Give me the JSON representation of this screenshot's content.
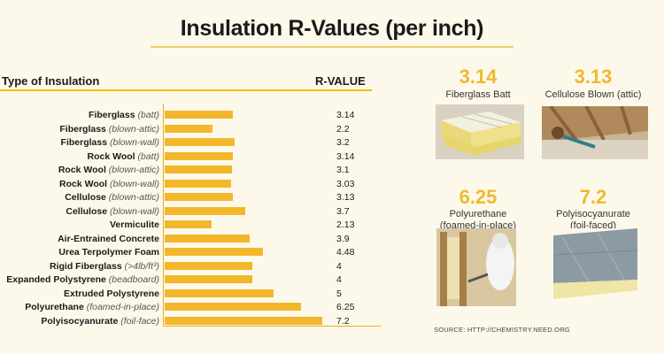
{
  "title": "Insulation R-Values (per inch)",
  "headers": {
    "type": "Type of Insulation",
    "rvalue": "R-VALUE"
  },
  "chart_data": {
    "type": "bar",
    "orientation": "horizontal",
    "xlabel": "Type of Insulation",
    "ylabel": "R-VALUE",
    "ylim": [
      0,
      7.5
    ],
    "categories": [
      {
        "name": "Fiberglass",
        "qualifier": "(batt)"
      },
      {
        "name": "Fiberglass",
        "qualifier": "(blown-attic)"
      },
      {
        "name": "Fiberglass",
        "qualifier": "(blown-wall)"
      },
      {
        "name": "Rock Wool",
        "qualifier": "(batt)"
      },
      {
        "name": "Rock Wool",
        "qualifier": "(blown-attic)"
      },
      {
        "name": "Rock Wool",
        "qualifier": "(blown-wall)"
      },
      {
        "name": "Cellulose",
        "qualifier": "(blown-attic)"
      },
      {
        "name": "Cellulose",
        "qualifier": "(blown-wall)"
      },
      {
        "name": "Vermiculite",
        "qualifier": ""
      },
      {
        "name": "Air-Entrained Concrete",
        "qualifier": ""
      },
      {
        "name": "Urea Terpolymer Foam",
        "qualifier": ""
      },
      {
        "name": "Rigid Fiberglass",
        "qualifier": "(>4lb/ft³)"
      },
      {
        "name": "Expanded Polystyrene",
        "qualifier": "(beadboard)"
      },
      {
        "name": "Extruded Polystyrene",
        "qualifier": ""
      },
      {
        "name": "Polyurethane",
        "qualifier": "(foamed-in-place)"
      },
      {
        "name": "Polyisocyanurate",
        "qualifier": "(foil-face)"
      }
    ],
    "values": [
      3.14,
      2.2,
      3.2,
      3.14,
      3.1,
      3.03,
      3.13,
      3.7,
      2.13,
      3.9,
      4.48,
      4,
      4,
      5,
      6.25,
      7.2
    ],
    "value_labels": [
      "3.14",
      "2.2",
      "3.2",
      "3.14",
      "3.1",
      "3.03",
      "3.13",
      "3.7",
      "2.13",
      "3.9",
      "4.48",
      "4",
      "4",
      "5",
      "6.25",
      "7.2"
    ],
    "bar_color": "#f3b72b"
  },
  "featured": [
    {
      "value": "3.14",
      "label": "Fiberglass Batt",
      "label2": ""
    },
    {
      "value": "3.13",
      "label": "Cellulose Blown (attic)",
      "label2": ""
    },
    {
      "value": "6.25",
      "label": "Polyurethane",
      "label2": "(foamed-in-place)"
    },
    {
      "value": "7.2",
      "label": "Polyisocyanurate",
      "label2": "(foil-faced)"
    }
  ],
  "source": "SOURCE: HTTP://CHEMISTRY.NEED.ORG",
  "colors": {
    "accent": "#f0b830",
    "background": "#fdf9ea"
  }
}
